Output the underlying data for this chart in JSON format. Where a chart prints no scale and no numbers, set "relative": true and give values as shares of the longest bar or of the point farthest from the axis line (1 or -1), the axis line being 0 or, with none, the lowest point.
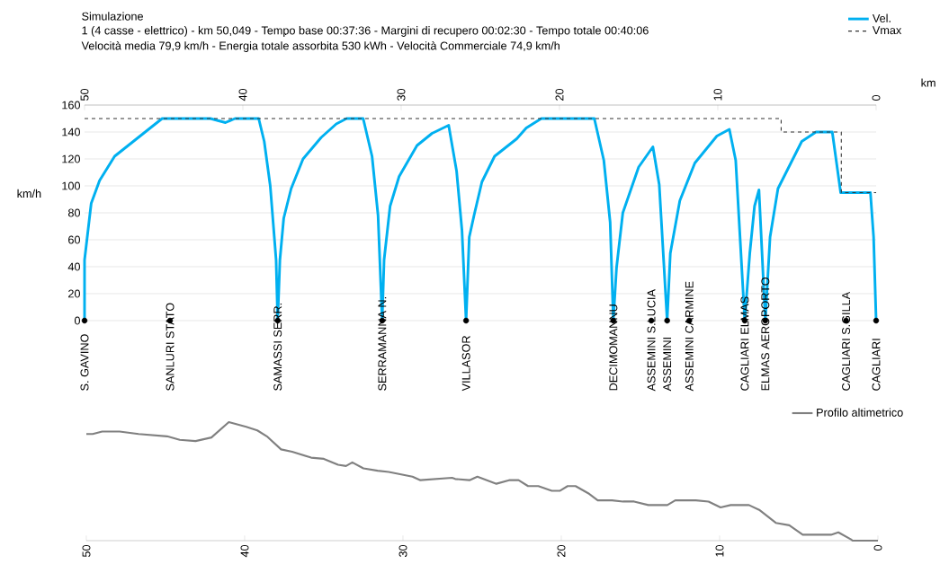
{
  "chart_data": [
    {
      "type": "line",
      "title": "Simulazione",
      "subtitle": "1 (4 casse - elettrico) - km 50,049 - Tempo base 00:37:36 - Margini di recupero 00:02:30 - Tempo totale 00:40:06",
      "xlabel": "km",
      "ylabel": "km/h",
      "xlim": [
        50,
        0
      ],
      "xticks": [
        50,
        40,
        30,
        20,
        10,
        0
      ],
      "ylim": [
        0,
        160
      ],
      "yticks": [
        0,
        20,
        40,
        60,
        80,
        100,
        120,
        140,
        160
      ],
      "grid": "y",
      "legend": "top right",
      "annotations": [
        "Velocità media 79,9 km/h - Energia totale assorbita 530 kWh - Velocità Commerciale 74,9 km/h",
        {
          "text": "S. GAVINO",
          "x": 50,
          "y": 0
        },
        {
          "text": "SANLURI STATO",
          "x": 44.6,
          "y": 0
        },
        {
          "text": "SAMASSI SERR.",
          "x": 37.8,
          "y": 0
        },
        {
          "text": "SERRAMANNA N.",
          "x": 31.2,
          "y": 0
        },
        {
          "text": "VILLASOR",
          "x": 25.9,
          "y": 0
        },
        {
          "text": "DECIMOMANNU",
          "x": 16.6,
          "y": 0
        },
        {
          "text": "ASSEMINI S.LUCIA",
          "x": 14.2,
          "y": 0
        },
        {
          "text": "ASSEMINI",
          "x": 13.2,
          "y": 0
        },
        {
          "text": "ASSEMINI CARMINE",
          "x": 11.8,
          "y": 0
        },
        {
          "text": "CAGLIARI ELMAS",
          "x": 8.3,
          "y": 0
        },
        {
          "text": "ELMAS AEROPORTO",
          "x": 7.0,
          "y": 0
        },
        {
          "text": "CAGLIARI S.GILLA",
          "x": 1.9,
          "y": 0
        },
        {
          "text": "CAGLIARI",
          "x": 0,
          "y": 0
        }
      ],
      "series": [
        {
          "name": "Vel.",
          "color": "#00b0f0",
          "x": [
            50,
            50,
            49.58,
            49.05,
            48.1,
            46.6,
            45.1,
            42.05,
            41.1,
            40.5,
            39.0,
            38.65,
            38.27,
            37.9,
            37.8,
            37.66,
            37.42,
            36.95,
            36.2,
            35.05,
            34.1,
            33.45,
            32.4,
            31.84,
            31.46,
            31.2,
            31.08,
            30.7,
            30.13,
            29.0,
            28.05,
            27.0,
            26.5,
            26.16,
            25.9,
            25.7,
            25.4,
            24.9,
            24.1,
            22.7,
            22.1,
            21.15,
            17.8,
            17.2,
            16.8,
            16.6,
            16.4,
            16.0,
            15.0,
            14.1,
            13.7,
            13.2,
            13.0,
            12.4,
            11.45,
            10.06,
            9.27,
            8.87,
            8.3,
            7.98,
            7.68,
            7.4,
            7.0,
            6.7,
            6.2,
            4.7,
            3.8,
            2.77,
            2.24,
            0.36,
            0.16,
            0
          ],
          "values": [
            0,
            45,
            87,
            104,
            122,
            136,
            150,
            150,
            147,
            150,
            150,
            133,
            100,
            45,
            0,
            45,
            76,
            98,
            120,
            136,
            146,
            150,
            150,
            122,
            78,
            0,
            45,
            85,
            107,
            130,
            139,
            145,
            111,
            67,
            0,
            62,
            78,
            103,
            122,
            135,
            143,
            150,
            150,
            119,
            73,
            0,
            39,
            80,
            114,
            129,
            101,
            0,
            50,
            89,
            117,
            137,
            142,
            119,
            0,
            50,
            85,
            97,
            0,
            62,
            98,
            133,
            140,
            140,
            95,
            95,
            62,
            0
          ]
        },
        {
          "name": "Vmax",
          "color": "#333333",
          "line_style": "dashed",
          "x": [
            50,
            6,
            6,
            2.2,
            2.2,
            0
          ],
          "values": [
            150,
            150,
            140,
            140,
            95,
            95
          ]
        },
        {
          "type": "scatter",
          "color": "#000000",
          "marker": "circle",
          "x": [
            50,
            44.6,
            37.8,
            31.2,
            25.9,
            16.6,
            14.2,
            13.2,
            11.8,
            8.3,
            7.0,
            1.9,
            0
          ],
          "values": [
            0,
            0,
            0,
            0,
            0,
            0,
            0,
            0,
            0,
            0,
            0,
            0,
            0
          ]
        }
      ]
    },
    {
      "type": "line",
      "relative": true,
      "xlim": [
        50,
        0
      ],
      "xticks": [
        50,
        40,
        30,
        20,
        10,
        0
      ],
      "legend": "top right",
      "series": [
        {
          "name": "Profilo altimetrico",
          "color": "#808080",
          "x": [
            50,
            49.6,
            49.0,
            47.9,
            46.7,
            44.9,
            44.1,
            43.1,
            42.1,
            41.0,
            39.9,
            39.2,
            38.6,
            37.7,
            37.0,
            35.8,
            35.0,
            34.1,
            33.6,
            33.2,
            32.5,
            31.6,
            30.9,
            29.4,
            28.9,
            26.9,
            26.7,
            25.8,
            25.3,
            24.1,
            23.3,
            22.7,
            22.1,
            21.45,
            20.6,
            20.1,
            19.6,
            19.1,
            18.3,
            17.7,
            16.8,
            16.1,
            15.4,
            14.5,
            13.3,
            12.8,
            11.5,
            10.7,
            9.94,
            9.3,
            8.15,
            7.5,
            6.45,
            5.6,
            4.75,
            2.96,
            2.5,
            1.7,
            1.6,
            0
          ],
          "values": [
            0.9,
            0.9,
            0.92,
            0.92,
            0.9,
            0.88,
            0.85,
            0.84,
            0.87,
            1.0,
            0.96,
            0.93,
            0.88,
            0.77,
            0.75,
            0.7,
            0.69,
            0.64,
            0.63,
            0.66,
            0.61,
            0.59,
            0.58,
            0.54,
            0.51,
            0.53,
            0.52,
            0.51,
            0.54,
            0.48,
            0.51,
            0.51,
            0.46,
            0.46,
            0.42,
            0.42,
            0.46,
            0.46,
            0.4,
            0.34,
            0.34,
            0.33,
            0.33,
            0.3,
            0.3,
            0.34,
            0.34,
            0.33,
            0.28,
            0.3,
            0.3,
            0.26,
            0.15,
            0.13,
            0.05,
            0.05,
            0.07,
            0.01,
            0,
            0
          ]
        }
      ]
    }
  ]
}
